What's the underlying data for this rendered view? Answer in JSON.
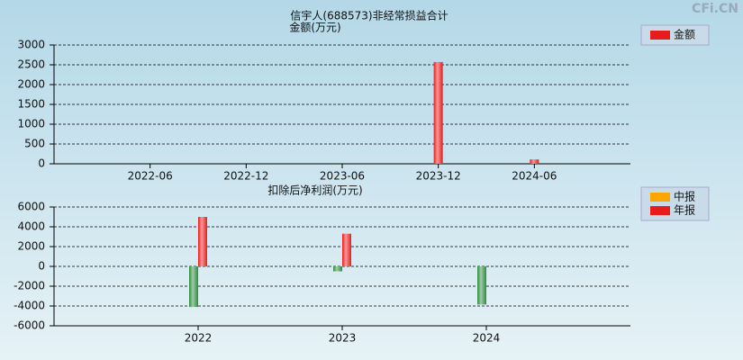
{
  "watermark": "CFi.CN",
  "chart_data": [
    {
      "type": "bar",
      "title": "信宇人(688573)非经常损益合计",
      "ylabel": "金额(万元)",
      "x": [
        "2023-12",
        "2024-06"
      ],
      "series": [
        {
          "name": "金额",
          "color": "#e81c1c",
          "values": [
            2570,
            110
          ]
        }
      ],
      "xlim": [
        "2021-12",
        "2024-12"
      ],
      "xticks": [
        "2022-06",
        "2022-12",
        "2023-06",
        "2023-12",
        "2024-06"
      ],
      "ylim": [
        0,
        3000
      ],
      "yticks": [
        0,
        500,
        1000,
        1500,
        2000,
        2500,
        3000
      ],
      "grid": true
    },
    {
      "type": "bar",
      "ylabel": "扣除后净利润(万元)",
      "x": [
        2022,
        2023,
        2024
      ],
      "series": [
        {
          "name": "中报",
          "color": "#ffa500",
          "values": [
            -4100,
            -500,
            -3850
          ]
        },
        {
          "name": "年报",
          "color": "#e81c1c",
          "values": [
            5000,
            3300,
            null
          ]
        }
      ],
      "negative_color": "#2e8b3e",
      "xlim": [
        2021,
        2025
      ],
      "xticks": [
        2022,
        2023,
        2024
      ],
      "ylim": [
        -6000,
        6000
      ],
      "yticks": [
        -6000,
        -4000,
        -2000,
        0,
        2000,
        4000,
        6000
      ],
      "grid": true
    }
  ]
}
